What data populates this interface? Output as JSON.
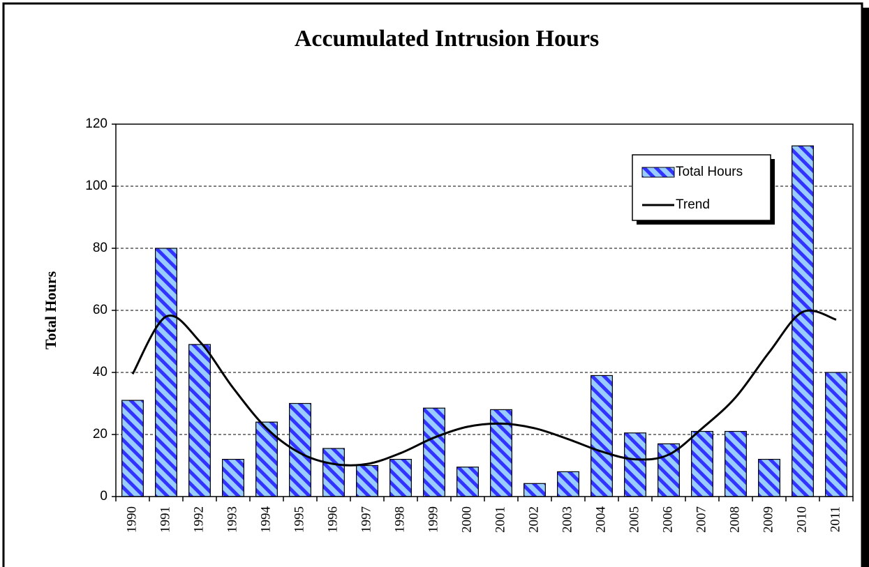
{
  "chart_data": {
    "type": "bar",
    "title": "Accumulated Intrusion Hours",
    "y_label": "Total Hours",
    "categories": [
      "1990",
      "1991",
      "1992",
      "1993",
      "1994",
      "1995",
      "1996",
      "1997",
      "1998",
      "1999",
      "2000",
      "2001",
      "2002",
      "2003",
      "2004",
      "2005",
      "2006",
      "2007",
      "2008",
      "2009",
      "2010",
      "2011"
    ],
    "series": [
      {
        "name": "Total Hours",
        "type": "bar",
        "color": "#99ccff",
        "stripe": "#3333ff",
        "values": [
          31,
          80,
          49,
          12,
          24,
          30,
          15.5,
          10,
          12,
          28.5,
          9.5,
          28,
          4.2,
          8,
          39,
          20.5,
          17,
          21,
          21,
          12,
          113,
          40
        ]
      },
      {
        "name": "Trend",
        "type": "line",
        "color": "#000000",
        "values": [
          39.5,
          58,
          50,
          35,
          22,
          14,
          10.5,
          10.5,
          14,
          19,
          22.5,
          23.5,
          22,
          18.5,
          14.5,
          12,
          13.5,
          22,
          32,
          46.5,
          59.5,
          57
        ]
      }
    ],
    "ylim": [
      0,
      120
    ],
    "yticks": [
      0,
      20,
      40,
      60,
      80,
      100,
      120
    ],
    "grid": true,
    "legend": "upper right"
  }
}
